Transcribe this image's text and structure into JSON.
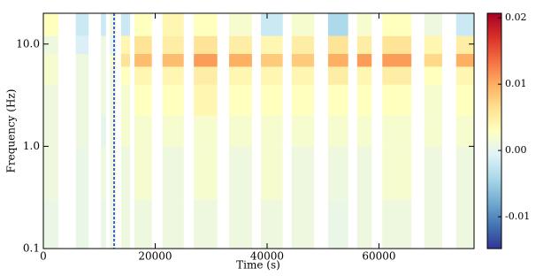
{
  "chart_data": {
    "type": "heatmap",
    "xlabel": "Time (s)",
    "ylabel": "Frequency (Hz)",
    "xlim": [
      0,
      77000
    ],
    "xticks": [
      0,
      20000,
      40000,
      60000
    ],
    "ylim": [
      0.1,
      20
    ],
    "log_y": true,
    "yticks": [
      0.1,
      {
        "value": 1,
        "label": "1.0"
      },
      {
        "value": 10,
        "label": "10.0"
      }
    ],
    "freq_bins": [
      0.1,
      0.3,
      1,
      2,
      4,
      6,
      8,
      12,
      20
    ],
    "segments": [
      {
        "start": 0,
        "end": 2700,
        "values": [
          0.0005,
          0.001,
          0.001,
          0.001,
          0.002,
          0.002,
          0.001,
          0.003
        ]
      },
      {
        "start": 5800,
        "end": 8100,
        "values": [
          0.0005,
          0.0005,
          0.001,
          0.001,
          0.001,
          0.001,
          -0.001,
          -0.002
        ]
      },
      {
        "start": 10300,
        "end": 11200,
        "values": [
          0.0005,
          0.001,
          0.0,
          0.001,
          0.001,
          0.001,
          0.001,
          -0.002
        ]
      },
      {
        "start": 11900,
        "end": 13000,
        "values": [
          0.0005,
          0.001,
          0.001,
          0.001,
          0.001,
          0.002,
          0.0,
          0.001
        ]
      },
      {
        "start": 13900,
        "end": 15500,
        "values": [
          0.001,
          0.001,
          0.002,
          0.002,
          0.003,
          0.006,
          0.004,
          -0.002
        ]
      },
      {
        "start": 16300,
        "end": 19400,
        "values": [
          0.001,
          0.002,
          0.002,
          0.003,
          0.004,
          0.009,
          0.006,
          0.003
        ]
      },
      {
        "start": 21300,
        "end": 25100,
        "values": [
          0.001,
          0.001,
          0.002,
          0.003,
          0.004,
          0.009,
          0.005,
          0.004
        ]
      },
      {
        "start": 26900,
        "end": 31100,
        "values": [
          0.001,
          0.002,
          0.002,
          0.004,
          0.005,
          0.011,
          0.006,
          0.003
        ]
      },
      {
        "start": 33200,
        "end": 37300,
        "values": [
          0.001,
          0.001,
          0.002,
          0.003,
          0.004,
          0.01,
          0.005,
          0.002
        ]
      },
      {
        "start": 38900,
        "end": 42800,
        "values": [
          0.001,
          0.002,
          0.002,
          0.003,
          0.004,
          0.008,
          0.004,
          -0.002
        ]
      },
      {
        "start": 44400,
        "end": 48400,
        "values": [
          0.001,
          0.001,
          0.002,
          0.003,
          0.004,
          0.008,
          0.005,
          0.002
        ]
      },
      {
        "start": 50900,
        "end": 54500,
        "values": [
          0.0005,
          0.001,
          0.002,
          0.003,
          0.005,
          0.01,
          0.006,
          -0.004
        ]
      },
      {
        "start": 56100,
        "end": 58700,
        "values": [
          0.001,
          0.001,
          0.002,
          0.003,
          0.004,
          0.011,
          0.005,
          0.002
        ]
      },
      {
        "start": 60600,
        "end": 65800,
        "values": [
          0.001,
          0.002,
          0.002,
          0.003,
          0.005,
          0.011,
          0.006,
          0.003
        ]
      },
      {
        "start": 68100,
        "end": 71300,
        "values": [
          0.001,
          0.001,
          0.002,
          0.002,
          0.003,
          0.007,
          0.004,
          0.001
        ]
      },
      {
        "start": 73800,
        "end": 77000,
        "values": [
          0.001,
          0.001,
          0.002,
          0.003,
          0.004,
          0.01,
          0.005,
          -0.002
        ]
      }
    ],
    "vline": 12650,
    "vline_color": "#1a2fc0",
    "clim": [
      -0.0148,
      0.0207
    ],
    "cticks": [
      {
        "value": 0.02,
        "label": "0.02"
      },
      {
        "value": 0.01,
        "label": "0.01"
      },
      {
        "value": 0,
        "label": "0.00"
      },
      {
        "value": -0.01,
        "label": "-0.01"
      }
    ],
    "colormap": [
      "#313695",
      "#4575b4",
      "#74add1",
      "#abd9e9",
      "#e0f3f8",
      "#ffffbf",
      "#fee090",
      "#fdae61",
      "#f46d43",
      "#d73027",
      "#a50026"
    ]
  }
}
